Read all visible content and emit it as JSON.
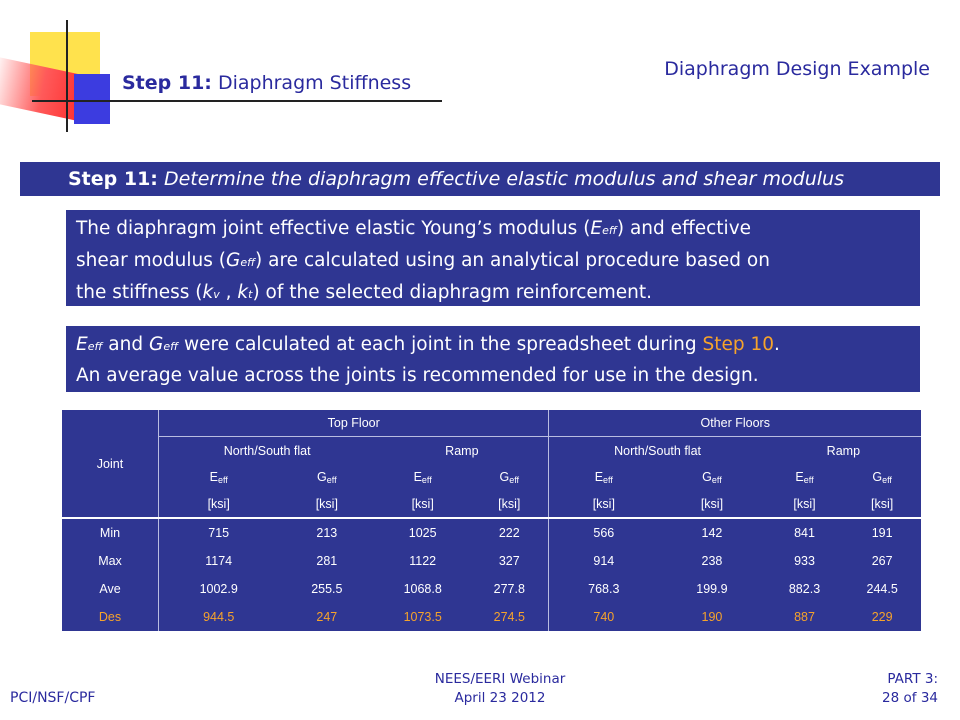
{
  "header": {
    "title_bold": "Step 11:",
    "title_rest": "Diaphragm Stiffness",
    "right": "Diaphragm Design Example"
  },
  "step_bar": {
    "bold": "Step 11:",
    "italic": "Determine the diaphragm effective elastic modulus and shear modulus"
  },
  "box1": {
    "t1": "The diaphragm joint effective elastic Young’s modulus (",
    "E": "E",
    "eff": "eff",
    "t2": ") and effective",
    "t3": "shear modulus (",
    "G": "G",
    "t4": ") are calculated using an analytical procedure based on",
    "t5": "the stiffness (",
    "k": "k",
    "v": "v",
    "comma": " , ",
    "t": "t",
    "t6": ") of the selected diaphragm reinforcement."
  },
  "box2": {
    "E": "E",
    "eff": "eff",
    "and": " and ",
    "G": "G",
    "t1": " were calculated at each joint in the spreadsheet during ",
    "step_ref": "Step 10",
    "period": ".",
    "line2": "An average value across the joints is recommended for use in the design."
  },
  "table": {
    "joint_header": "Joint",
    "groups": [
      "Top Floor",
      "Other Floors"
    ],
    "subgroups": [
      "North/South flat",
      "Ramp",
      "North/South flat",
      "Ramp"
    ],
    "sym_E": "E",
    "sym_G": "G",
    "sym_sub": "eff",
    "unit": "[ksi]",
    "rows": [
      {
        "label": "Min",
        "values": [
          "715",
          "213",
          "1025",
          "222",
          "566",
          "142",
          "841",
          "191"
        ]
      },
      {
        "label": "Max",
        "values": [
          "1174",
          "281",
          "1122",
          "327",
          "914",
          "238",
          "933",
          "267"
        ]
      },
      {
        "label": "Ave",
        "values": [
          "1002.9",
          "255.5",
          "1068.8",
          "277.8",
          "768.3",
          "199.9",
          "882.3",
          "244.5"
        ]
      },
      {
        "label": "Des",
        "values": [
          "944.5",
          "247",
          "1073.5",
          "274.5",
          "740",
          "190",
          "887",
          "229"
        ]
      }
    ]
  },
  "footer": {
    "left": "PCI/NSF/CPF",
    "mid1": "NEES/EERI Webinar",
    "mid2": "April 23 2012",
    "right1": "PART 3:",
    "right2": "28 of 34"
  },
  "colors": {
    "accent_blue": "#2f3692",
    "highlight_orange": "#f6a32b",
    "text_blue": "#2a2a9e"
  }
}
